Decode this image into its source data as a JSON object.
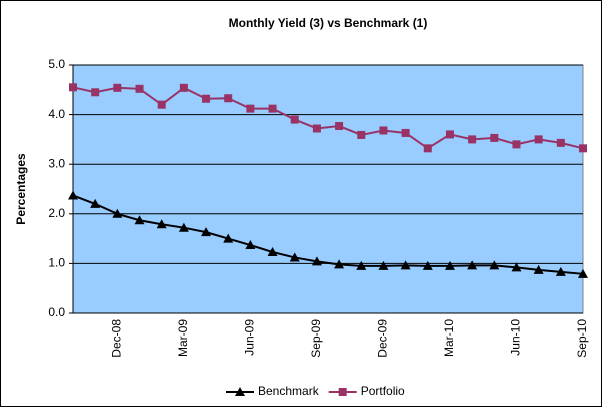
{
  "chart_data": {
    "type": "line",
    "title": "Monthly Yield (3) vs Benchmark (1)",
    "y_label": "Percentages",
    "categories": [
      null,
      null,
      "Dec-08",
      null,
      null,
      "Mar-09",
      null,
      null,
      "Jun-09",
      null,
      null,
      "Sep-09",
      null,
      null,
      "Dec-09",
      null,
      null,
      "Mar-10",
      null,
      null,
      "Jun-10",
      null,
      null,
      "Sep-10"
    ],
    "series": [
      {
        "name": "Benchmark",
        "color": "#000000",
        "marker": "triangle",
        "values": [
          2.37,
          2.2,
          2.0,
          1.87,
          1.79,
          1.72,
          1.63,
          1.5,
          1.37,
          1.23,
          1.12,
          1.04,
          0.98,
          0.95,
          0.95,
          0.96,
          0.95,
          0.95,
          0.96,
          0.96,
          0.92,
          0.87,
          0.83,
          0.79
        ]
      },
      {
        "name": "Portfolio",
        "color": "#993366",
        "marker": "square",
        "values": [
          4.55,
          4.45,
          4.54,
          4.52,
          4.2,
          4.54,
          4.32,
          4.33,
          4.12,
          4.12,
          3.9,
          3.72,
          3.77,
          3.59,
          3.68,
          3.63,
          3.32,
          3.6,
          3.5,
          3.53,
          3.4,
          3.5,
          3.43,
          3.32
        ]
      }
    ],
    "ylim": [
      0,
      5
    ],
    "yticks": [
      {
        "value": 0,
        "label": "0.0"
      },
      {
        "value": 1,
        "label": "1.0"
      },
      {
        "value": 2,
        "label": "2.0"
      },
      {
        "value": 3,
        "label": "3.0"
      },
      {
        "value": 4,
        "label": "4.0"
      },
      {
        "value": 5,
        "label": "5.0"
      }
    ],
    "grid": true,
    "plot_background": "#99ccff",
    "legend": "bottom"
  }
}
